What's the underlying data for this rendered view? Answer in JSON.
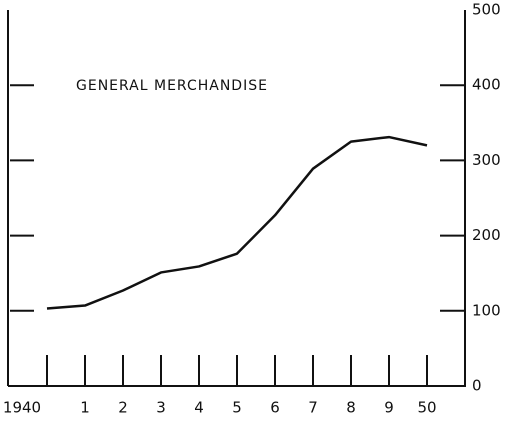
{
  "chart_data": {
    "type": "line",
    "title": "GENERAL MERCHANDISE",
    "categories": [
      "1940",
      "1",
      "2",
      "3",
      "4",
      "5",
      "6",
      "7",
      "8",
      "9",
      "50"
    ],
    "values": [
      103,
      107,
      127,
      151,
      159,
      176,
      227,
      289,
      325,
      331,
      320
    ],
    "color": "#111111",
    "ylim": [
      0,
      500
    ],
    "yticks": [
      0,
      100,
      200,
      300,
      400,
      500
    ],
    "grid": false
  }
}
